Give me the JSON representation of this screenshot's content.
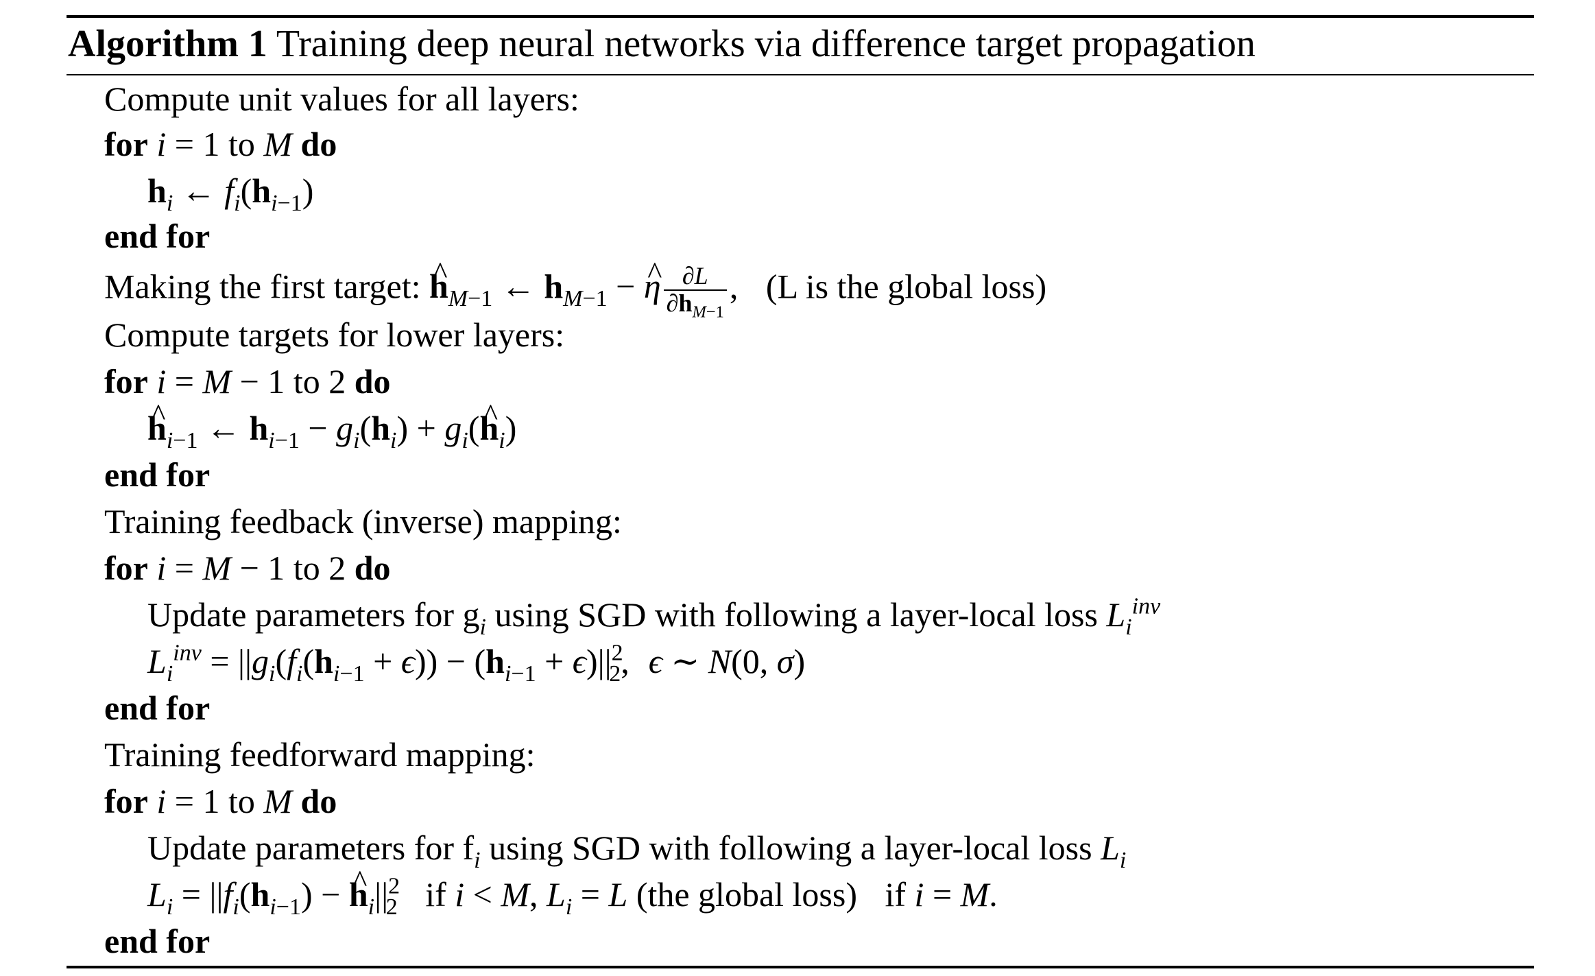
{
  "algorithm": {
    "label": "Algorithm 1",
    "title": "Training deep neural networks via difference target propagation",
    "lines": {
      "compute_units": "Compute unit values for all layers:",
      "making_first_target": "Making the first target:",
      "global_loss_note": "(L is the global loss)",
      "compute_targets": "Compute targets for lower layers:",
      "training_feedback": "Training feedback (inverse) mapping:",
      "update_g": "Update parameters for g",
      "update_f": "Update parameters for f",
      "using_sgd": "using SGD with following a layer-local loss",
      "training_feedforward": "Training feedforward mapping:",
      "global_loss_paren": "(the global loss)"
    },
    "keywords": {
      "for": "for",
      "do": "do",
      "end_for": "end for",
      "to": "to",
      "if": "if"
    }
  }
}
